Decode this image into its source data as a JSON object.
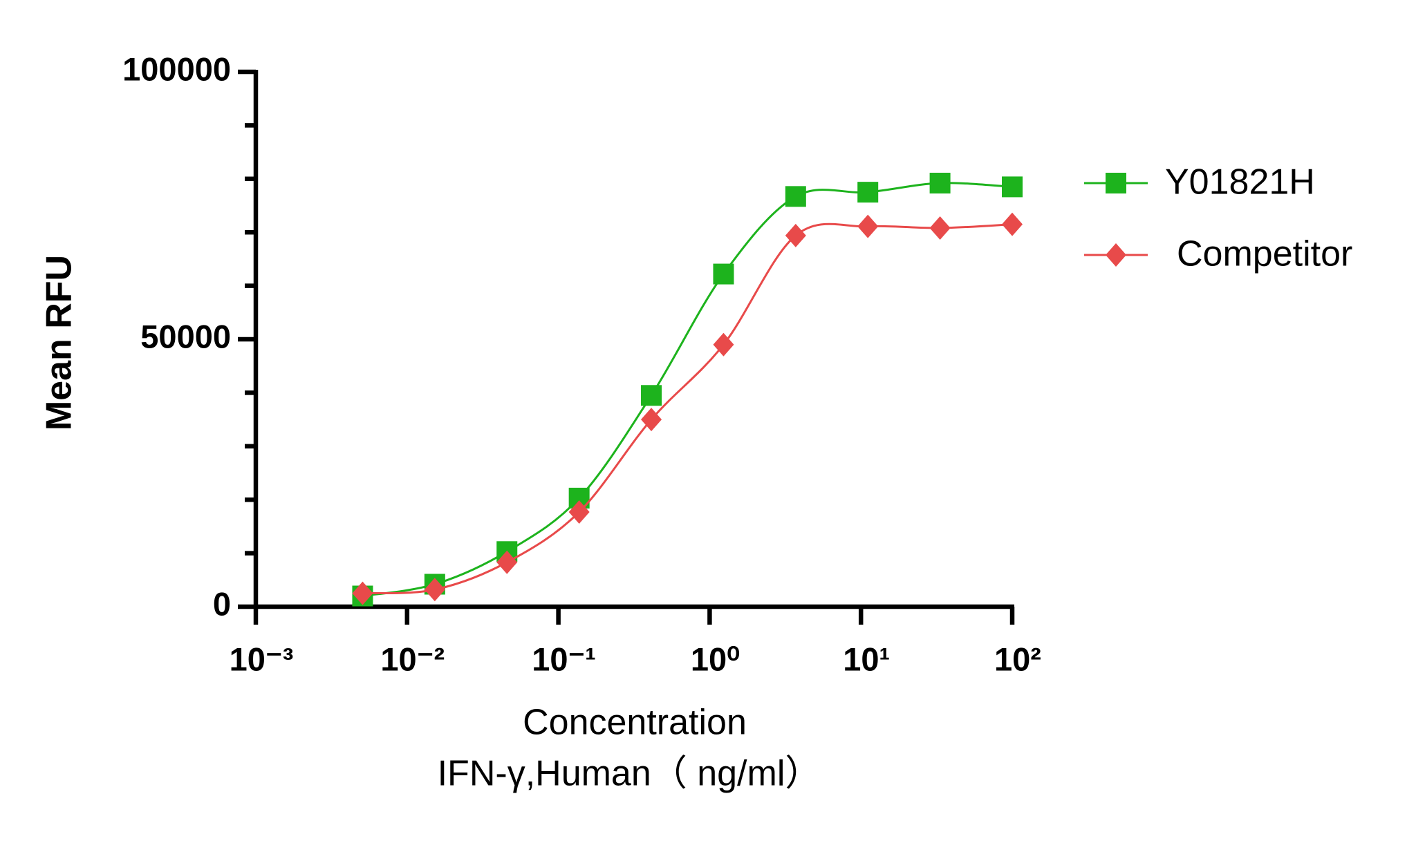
{
  "chart_data": {
    "type": "scatter-line",
    "x": [
      0.00508,
      0.01524,
      0.04572,
      0.1372,
      0.4115,
      1.235,
      3.704,
      11.11,
      33.33,
      100
    ],
    "series": [
      {
        "name": "Y01821H",
        "color": "#1db31d",
        "marker": "square",
        "values": [
          2000,
          4200,
          10300,
          20300,
          39500,
          62200,
          76700,
          77500,
          79200,
          78500
        ]
      },
      {
        "name": "Competitor",
        "color": "#e84a4a",
        "marker": "diamond",
        "values": [
          2500,
          3200,
          8300,
          17700,
          35000,
          49000,
          69400,
          71100,
          70800,
          71500
        ]
      }
    ],
    "xscale": "log",
    "xlim": [
      0.001,
      100
    ],
    "xticks": [
      {
        "value": 0.001,
        "label": "10⁻³"
      },
      {
        "value": 0.01,
        "label": "10⁻²"
      },
      {
        "value": 0.1,
        "label": "10⁻¹"
      },
      {
        "value": 1,
        "label": "10⁰"
      },
      {
        "value": 10,
        "label": "10¹"
      },
      {
        "value": 100,
        "label": "10²"
      }
    ],
    "ylim": [
      0,
      100000
    ],
    "yticks": [
      0,
      50000,
      100000
    ],
    "yminorticks": [
      10000,
      20000,
      30000,
      40000,
      60000,
      70000,
      80000,
      90000
    ],
    "ylabel": "Mean RFU",
    "xlabel": [
      "Concentration",
      "IFN-γ,Human（ ng/ml）"
    ],
    "legend": "right"
  }
}
